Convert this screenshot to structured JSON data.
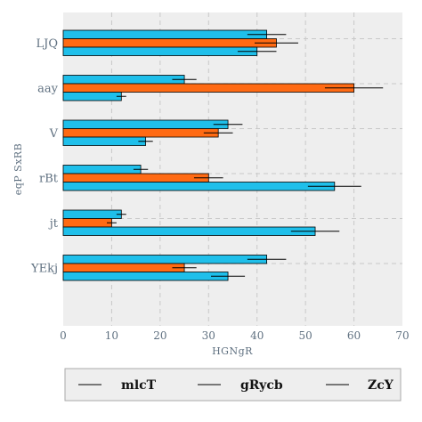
{
  "chart_data": {
    "type": "bar",
    "orientation": "horizontal",
    "categories": [
      "LJQ",
      "aay",
      "V",
      "rBt",
      "jt",
      "YEkj"
    ],
    "series": [
      {
        "name": "mlcT",
        "color": "#1fbfea",
        "values": [
          42,
          25,
          34,
          16,
          12,
          42
        ],
        "errors": [
          4,
          2.5,
          3,
          1.5,
          1,
          4
        ]
      },
      {
        "name": "gRycb",
        "color": "#ff6a13",
        "values": [
          44,
          60,
          32,
          30,
          10,
          25
        ],
        "errors": [
          4.5,
          6,
          3,
          3,
          1,
          2.5
        ]
      },
      {
        "name": "ZcY",
        "color": "#1fbfea",
        "values": [
          40,
          12,
          17,
          56,
          52,
          34
        ],
        "errors": [
          4,
          1,
          1.5,
          5.5,
          5,
          3.5
        ]
      }
    ],
    "xlabel": "HGNgR",
    "ylabel": "eqP SxRB",
    "xlim": [
      0,
      70
    ],
    "xticks": [
      0,
      10,
      20,
      30,
      40,
      50,
      60,
      70
    ],
    "grid": true,
    "legend_position": "bottom",
    "colors": {
      "background": "#eeeeee",
      "grid": "#c8c8c8",
      "text": "#5f7080"
    }
  }
}
